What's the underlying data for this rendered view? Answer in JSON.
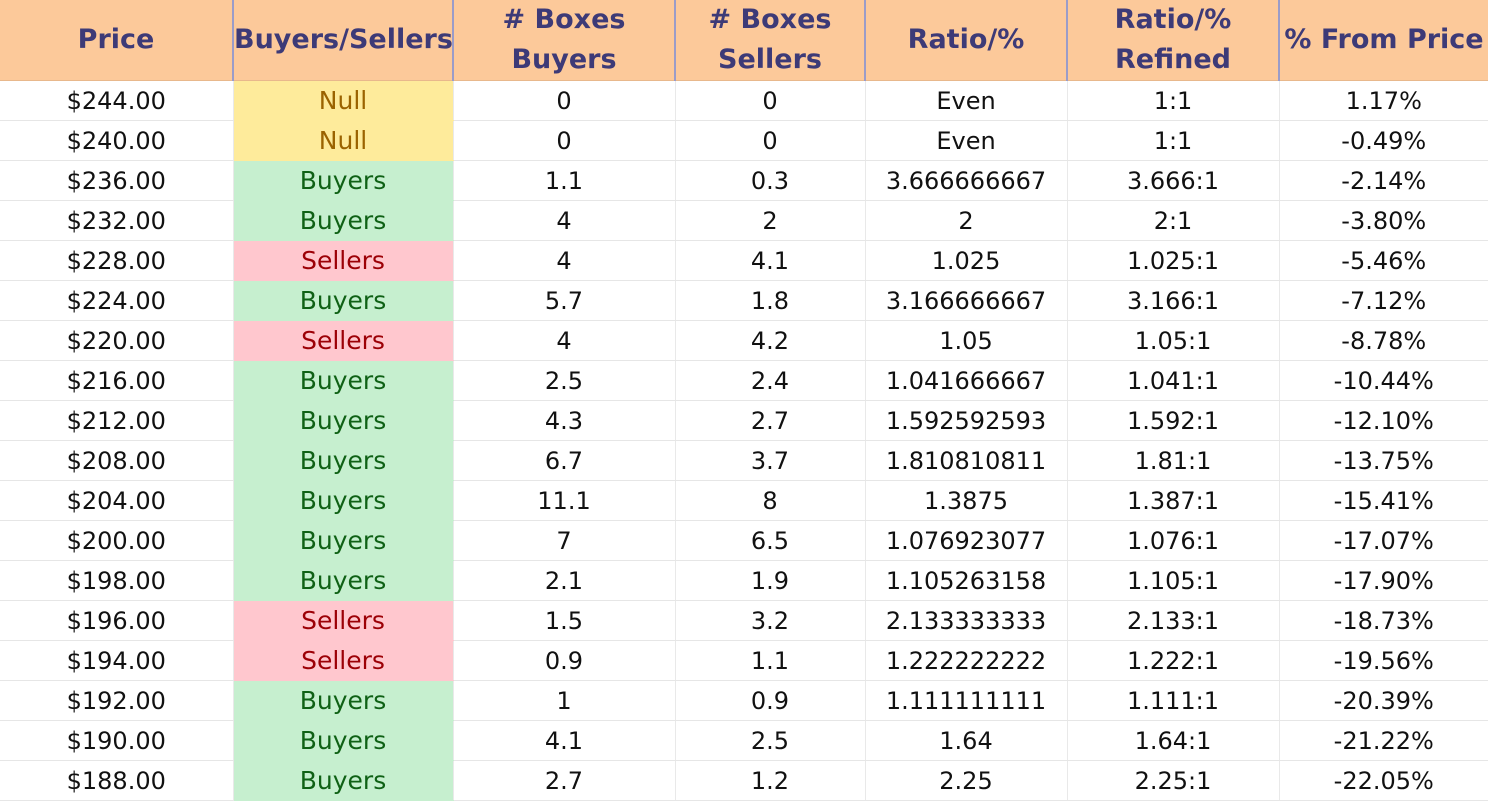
{
  "headers": [
    "Price",
    "Buyers/Sellers",
    "# Boxes Buyers",
    "# Boxes\nSellers",
    "Ratio/%",
    "Ratio/%\nRefined",
    "% From Price"
  ],
  "status_colors": {
    "Null": {
      "bg": "#feeb9b",
      "fg": "#9b6300"
    },
    "Buyers": {
      "bg": "#c6efcf",
      "fg": "#0f6115"
    },
    "Sellers": {
      "bg": "#ffc7ce",
      "fg": "#9c0006"
    }
  },
  "header_colors": {
    "bg": "#fcc99a",
    "fg": "#3d3a77"
  },
  "rows": [
    [
      "$244.00",
      "Null",
      "0",
      "0",
      "Even",
      "1:1",
      "1.17%"
    ],
    [
      "$240.00",
      "Null",
      "0",
      "0",
      "Even",
      "1:1",
      "-0.49%"
    ],
    [
      "$236.00",
      "Buyers",
      "1.1",
      "0.3",
      "3.666666667",
      "3.666:1",
      "-2.14%"
    ],
    [
      "$232.00",
      "Buyers",
      "4",
      "2",
      "2",
      "2:1",
      "-3.80%"
    ],
    [
      "$228.00",
      "Sellers",
      "4",
      "4.1",
      "1.025",
      "1.025:1",
      "-5.46%"
    ],
    [
      "$224.00",
      "Buyers",
      "5.7",
      "1.8",
      "3.166666667",
      "3.166:1",
      "-7.12%"
    ],
    [
      "$220.00",
      "Sellers",
      "4",
      "4.2",
      "1.05",
      "1.05:1",
      "-8.78%"
    ],
    [
      "$216.00",
      "Buyers",
      "2.5",
      "2.4",
      "1.041666667",
      "1.041:1",
      "-10.44%"
    ],
    [
      "$212.00",
      "Buyers",
      "4.3",
      "2.7",
      "1.592592593",
      "1.592:1",
      "-12.10%"
    ],
    [
      "$208.00",
      "Buyers",
      "6.7",
      "3.7",
      "1.810810811",
      "1.81:1",
      "-13.75%"
    ],
    [
      "$204.00",
      "Buyers",
      "11.1",
      "8",
      "1.3875",
      "1.387:1",
      "-15.41%"
    ],
    [
      "$200.00",
      "Buyers",
      "7",
      "6.5",
      "1.076923077",
      "1.076:1",
      "-17.07%"
    ],
    [
      "$198.00",
      "Buyers",
      "2.1",
      "1.9",
      "1.105263158",
      "1.105:1",
      "-17.90%"
    ],
    [
      "$196.00",
      "Sellers",
      "1.5",
      "3.2",
      "2.133333333",
      "2.133:1",
      "-18.73%"
    ],
    [
      "$194.00",
      "Sellers",
      "0.9",
      "1.1",
      "1.222222222",
      "1.222:1",
      "-19.56%"
    ],
    [
      "$192.00",
      "Buyers",
      "1",
      "0.9",
      "1.111111111",
      "1.111:1",
      "-20.39%"
    ],
    [
      "$190.00",
      "Buyers",
      "4.1",
      "2.5",
      "1.64",
      "1.64:1",
      "-21.22%"
    ],
    [
      "$188.00",
      "Buyers",
      "2.7",
      "1.2",
      "2.25",
      "2.25:1",
      "-22.05%"
    ]
  ]
}
